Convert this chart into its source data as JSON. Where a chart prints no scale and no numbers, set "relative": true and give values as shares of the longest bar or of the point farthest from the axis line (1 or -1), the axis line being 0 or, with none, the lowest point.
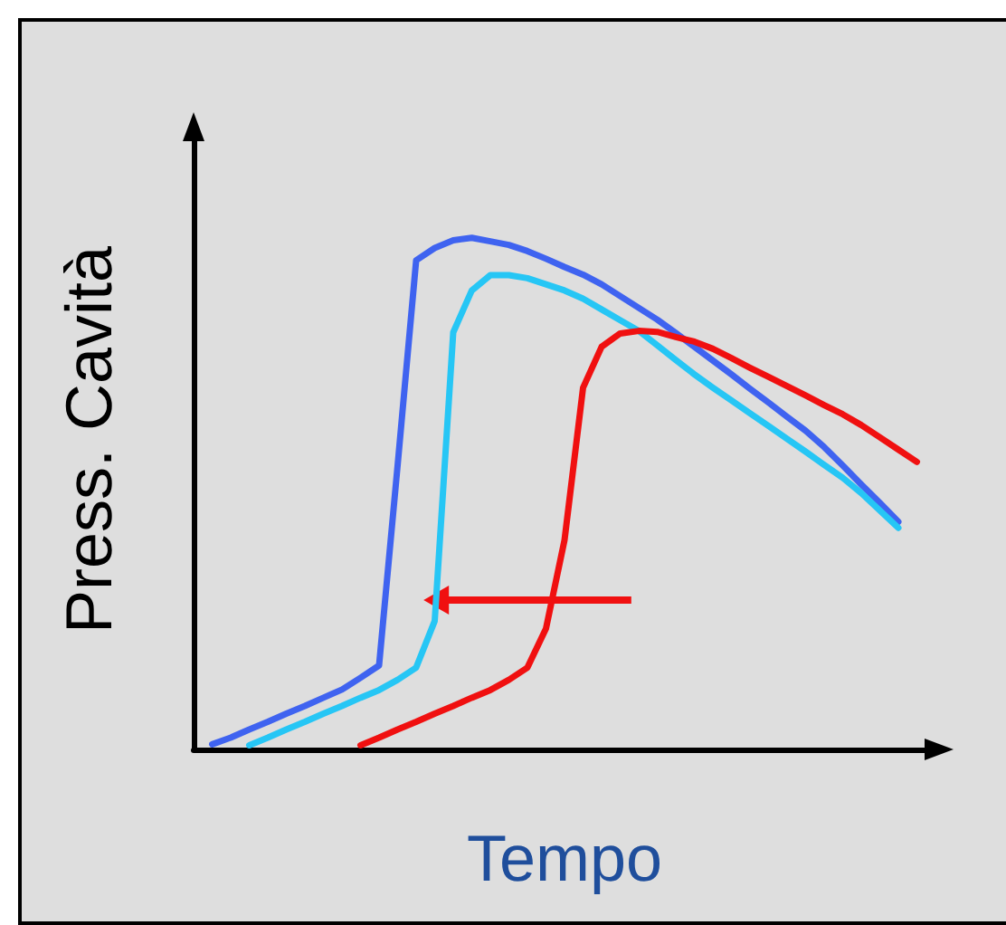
{
  "chart_data": {
    "type": "line",
    "relative": true,
    "xlabel": "Tempo",
    "ylabel": "Press. Cavità",
    "marker": "none",
    "line_style": "solid",
    "categories": [
      null,
      null,
      null,
      null,
      null,
      null,
      null,
      null,
      null,
      null,
      null,
      null,
      null,
      null,
      null,
      null,
      null,
      null,
      null,
      null,
      null,
      null,
      null,
      null,
      null,
      null,
      null,
      null,
      null,
      null,
      null,
      null,
      null,
      null,
      null,
      null,
      null,
      null,
      null,
      null,
      null
    ],
    "series": [
      {
        "color": "#3f63f0",
        "values": [
          null,
          0.01,
          0.023,
          0.039,
          0.054,
          0.07,
          0.085,
          0.101,
          0.117,
          0.14,
          0.164,
          0.555,
          0.956,
          0.98,
          0.995,
          1,
          0.993,
          0.986,
          0.974,
          0.959,
          0.943,
          0.928,
          0.909,
          0.886,
          0.863,
          0.84,
          0.814,
          0.787,
          0.76,
          0.733,
          0.705,
          0.678,
          0.65,
          0.623,
          0.591,
          0.555,
          0.518,
          0.482,
          0.445,
          null,
          null
        ]
      },
      {
        "color": "#26c6f5",
        "values": [
          null,
          null,
          null,
          0.008,
          0.023,
          0.039,
          0.054,
          0.07,
          0.085,
          0.101,
          0.116,
          0.136,
          0.16,
          0.251,
          0.815,
          0.897,
          0.927,
          0.927,
          0.921,
          0.909,
          0.897,
          0.881,
          0.86,
          0.839,
          0.818,
          0.79,
          0.761,
          0.733,
          0.707,
          0.682,
          0.657,
          0.632,
          0.607,
          0.582,
          0.556,
          0.531,
          0.501,
          0.467,
          0.433,
          null,
          null
        ]
      },
      {
        "color": "#f01010",
        "values": [
          null,
          null,
          null,
          null,
          null,
          null,
          null,
          null,
          null,
          0.008,
          0.023,
          0.039,
          0.054,
          0.07,
          0.085,
          0.101,
          0.116,
          0.136,
          0.16,
          0.236,
          0.409,
          0.707,
          0.787,
          0.813,
          0.818,
          0.816,
          0.806,
          0.797,
          0.783,
          0.765,
          0.746,
          0.728,
          0.71,
          0.692,
          0.673,
          0.655,
          0.634,
          0.61,
          0.586,
          0.562,
          null
        ]
      }
    ]
  }
}
